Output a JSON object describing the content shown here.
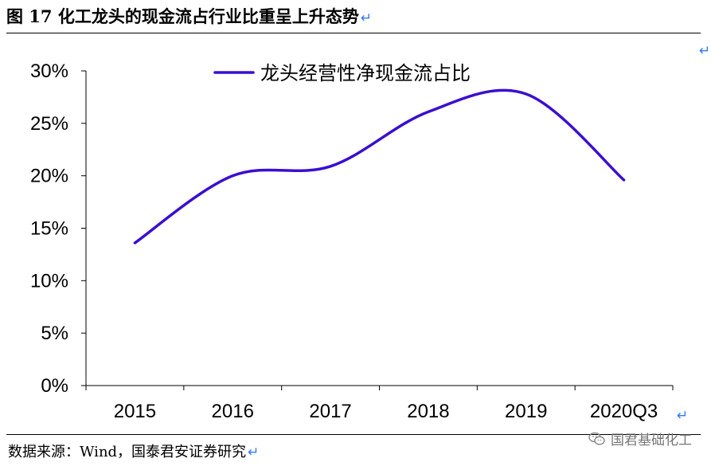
{
  "figure": {
    "title": "图 17 化工龙头的现金流占行业比重呈上升态势",
    "source": "数据来源：Wind，国泰君安证券研究",
    "watermark": "国君基础化工"
  },
  "colors": {
    "series": "#3a0fd0",
    "return_mark": "#2b79ff"
  },
  "chart_data": {
    "type": "line",
    "categories": [
      "2015",
      "2016",
      "2017",
      "2018",
      "2019",
      "2020Q3"
    ],
    "series": [
      {
        "name": "龙头经营性净现金流占比",
        "values": [
          13.6,
          20.0,
          20.9,
          26.1,
          27.8,
          19.6
        ]
      }
    ],
    "yticks": [
      "0%",
      "5%",
      "10%",
      "15%",
      "20%",
      "25%",
      "30%"
    ],
    "ylim": [
      0,
      30
    ],
    "y_unit": "%",
    "grid": false,
    "legend_position": "top",
    "smooth": true
  }
}
